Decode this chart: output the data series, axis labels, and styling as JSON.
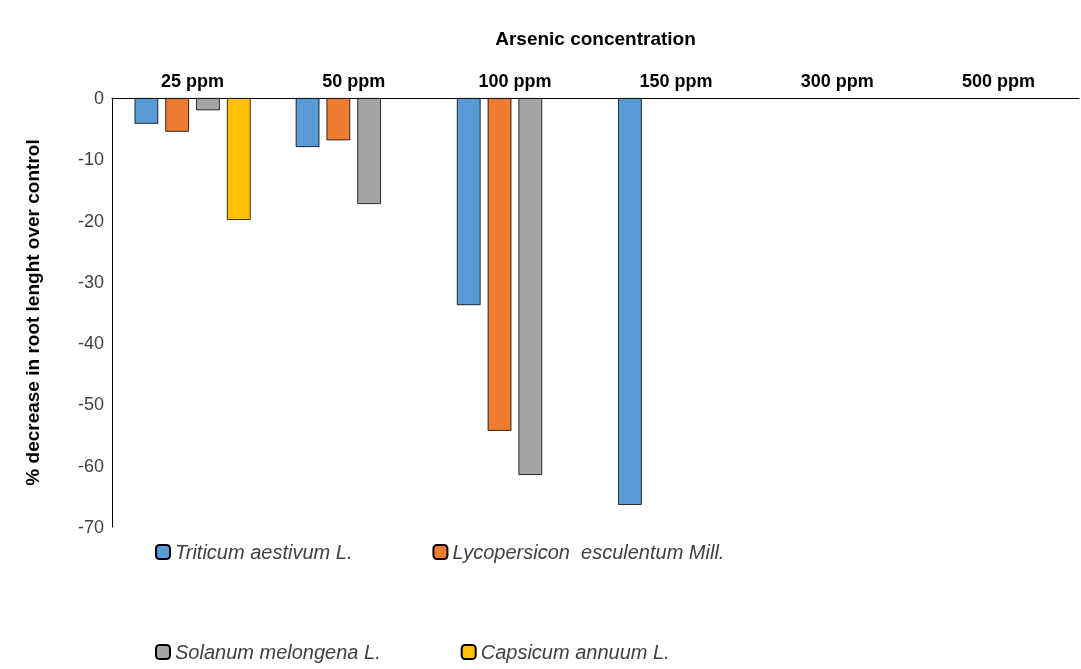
{
  "chart_data": {
    "type": "bar",
    "xlabel": "Arsenic concentration",
    "ylabel": "% decrease in root lenght over control",
    "categories": [
      "25 ppm",
      "50 ppm",
      "100 ppm",
      "150 ppm",
      "300 ppm",
      "500 ppm"
    ],
    "series": [
      {
        "name": "Triticum aestivum L.",
        "color": "#5b9bd5",
        "values": [
          -4.2,
          -8,
          -33.8,
          -66.4,
          null,
          null
        ]
      },
      {
        "name": "Lycopersicon  esculentum Mill.",
        "color": "#ed7d31",
        "values": [
          -5.5,
          -6.9,
          -54.3,
          null,
          null,
          null
        ]
      },
      {
        "name": "Solanum melongena L.",
        "color": "#a5a5a5",
        "values": [
          -2,
          -17.3,
          -61.5,
          null,
          null,
          null
        ]
      },
      {
        "name": "Capsicum annuum L.",
        "color": "#ffc000",
        "values": [
          -19.9,
          null,
          null,
          null,
          null,
          null
        ]
      }
    ],
    "ylim": [
      -70,
      0
    ],
    "yticks": [
      -70,
      -60,
      -50,
      -40,
      -30,
      -20,
      -10,
      0
    ],
    "grid": false,
    "legend": "bottom"
  }
}
